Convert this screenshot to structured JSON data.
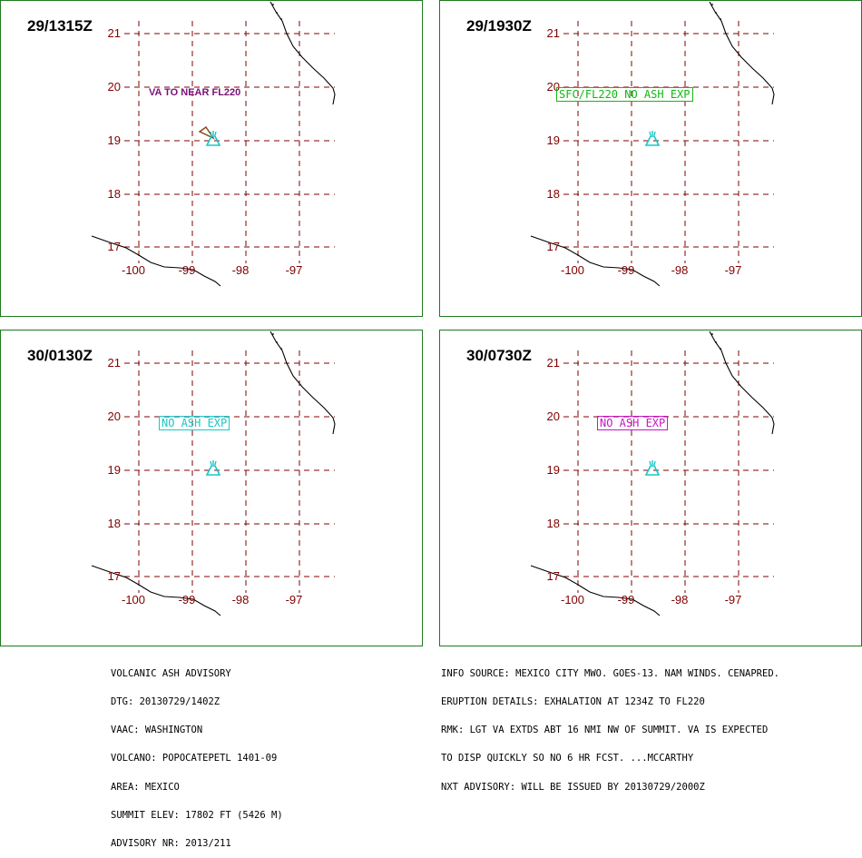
{
  "panels": [
    {
      "time": "29/1315Z",
      "note": "VA TO NEAR FL220",
      "note_style": "plain",
      "note_color": "#7a0f7a",
      "show_polygon": true,
      "polygon_color": "#8b4513"
    },
    {
      "time": "29/1930Z",
      "note": "SFC/FL220 NO ASH EXP",
      "note_style": "boxed",
      "note_color": "#16b516",
      "show_polygon": false
    },
    {
      "time": "30/0130Z",
      "note": "NO ASH EXP",
      "note_style": "boxed",
      "note_color": "#19c6c6",
      "show_polygon": false
    },
    {
      "time": "30/0730Z",
      "note": "NO ASH EXP",
      "note_style": "boxed",
      "note_color": "#c418c4",
      "show_polygon": false
    }
  ],
  "map": {
    "lat_labels": [
      "21",
      "20",
      "19",
      "18",
      "17"
    ],
    "lon_labels": [
      "-100",
      "-99",
      "-98",
      "-97"
    ],
    "grid_color": "#800000",
    "coast_color": "#000000",
    "volcano_icon": "volcano-icon",
    "volcano_color": "#19c6c6"
  },
  "footer_left": [
    "VOLCANIC ASH ADVISORY",
    "DTG: 20130729/1402Z",
    "VAAC: WASHINGTON",
    "VOLCANO: POPOCATEPETL 1401-09",
    "AREA: MEXICO",
    "SUMMIT ELEV: 17802 FT (5426 M)",
    "ADVISORY NR: 2013/211"
  ],
  "footer_right": [
    "INFO SOURCE: MEXICO CITY MWO. GOES-13. NAM WINDS. CENAPRED.",
    "ERUPTION DETAILS: EXHALATION AT 1234Z TO FL220",
    "RMK: LGT VA EXTDS ABT 16 NMI NW OF SUMMIT. VA IS EXPECTED",
    "TO DISP QUICKLY SO NO 6 HR FCST. ...MCCARTHY",
    "NXT ADVISORY: WILL BE ISSUED BY 20130729/2000Z"
  ]
}
